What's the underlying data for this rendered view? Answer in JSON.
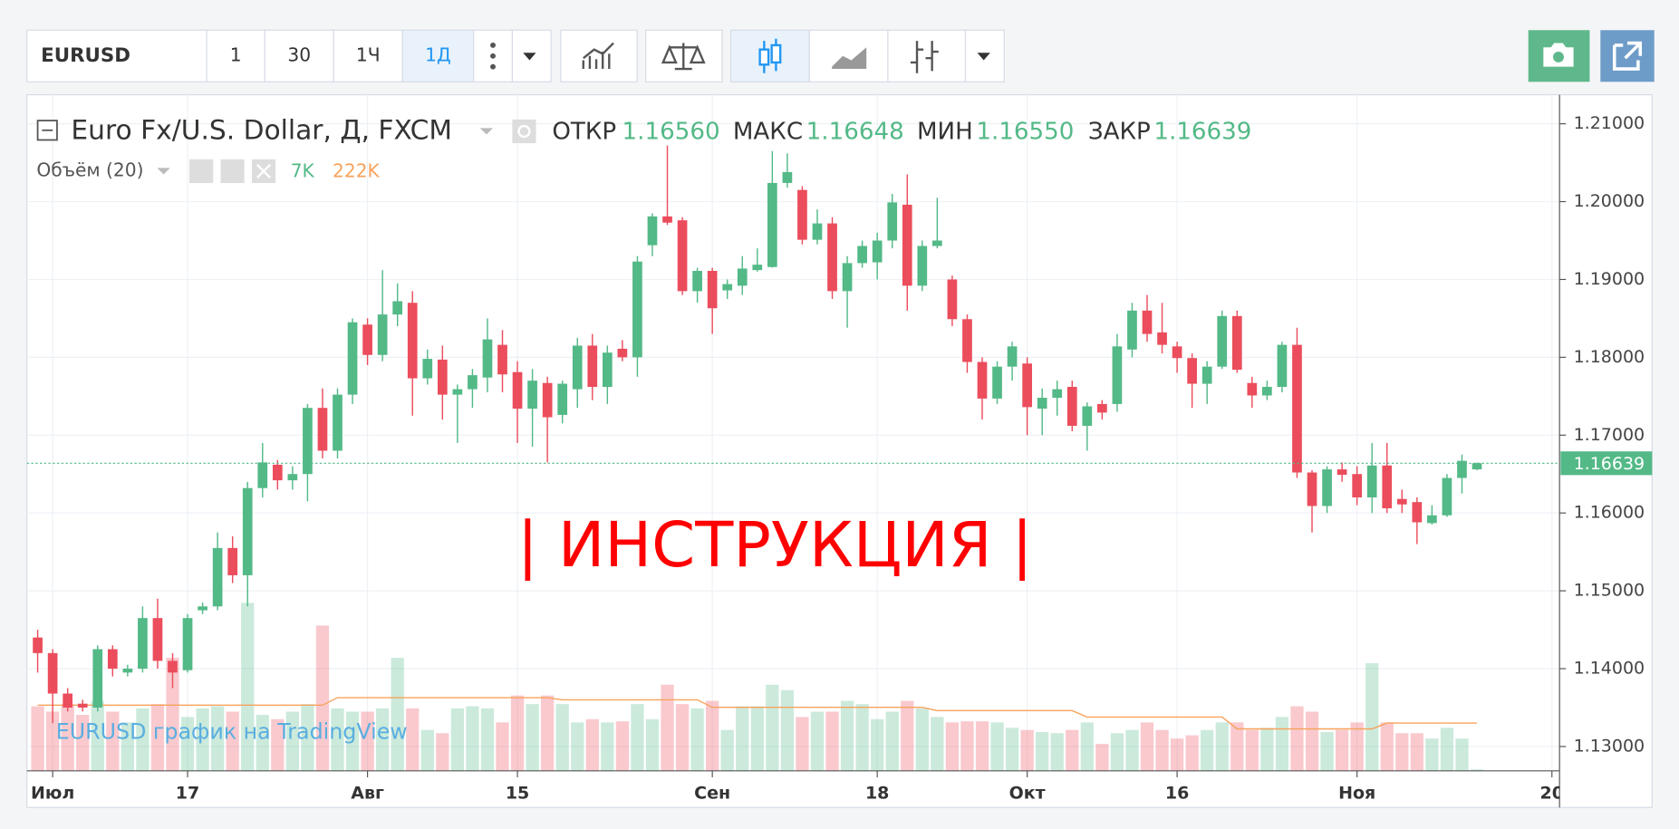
{
  "toolbar": {
    "symbol": "EURUSD",
    "intervals": [
      "1",
      "30",
      "1Ч",
      "1Д"
    ]
  },
  "legend": {
    "title": "Euro Fx/U.S. Dollar, Д, FXCM",
    "open_label": "ОТКР",
    "high_label": "МАКС",
    "low_label": "МИН",
    "close_label": "ЗАКР",
    "volume_title": "Объём (20)"
  },
  "watermark": "EURUSD график на TradingView",
  "overlay_text": "| ИНСТРУКЦИЯ |",
  "chart_data": {
    "type": "candlestick",
    "up_color": "#53b987",
    "down_color": "#eb4d5c",
    "volume_ma_color": "#f7a35c",
    "ohlc_labels": [
      "1.16560",
      "1.16648",
      "1.16550",
      "1.16639"
    ],
    "volume_label": {
      "value": 7000,
      "label": "7K"
    },
    "volume_ma_label": {
      "value": 222000,
      "label": "222K"
    },
    "ylim": [
      1.12687,
      1.21373
    ],
    "vlim": [
      0,
      3140000
    ],
    "yticks": [
      {
        "value": 1.13,
        "label": "1.13000"
      },
      {
        "value": 1.14,
        "label": "1.14000"
      },
      {
        "value": 1.15,
        "label": "1.15000"
      },
      {
        "value": 1.16,
        "label": "1.16000"
      },
      {
        "value": 1.17,
        "label": "1.17000"
      },
      {
        "value": 1.18,
        "label": "1.18000"
      },
      {
        "value": 1.19,
        "label": "1.19000"
      },
      {
        "value": 1.2,
        "label": "1.20000"
      },
      {
        "value": 1.21,
        "label": "1.21000"
      }
    ],
    "xticks": [
      {
        "value": 1,
        "label": "Июл"
      },
      {
        "value": 10,
        "label": "17"
      },
      {
        "value": 22,
        "label": "Авг"
      },
      {
        "value": 32,
        "label": "15"
      },
      {
        "value": 45,
        "label": "Сен"
      },
      {
        "value": 56,
        "label": "18"
      },
      {
        "value": 66,
        "label": "Окт"
      },
      {
        "value": 76,
        "label": "16"
      },
      {
        "value": 88,
        "label": "Ноя"
      },
      {
        "value": 101,
        "label": "20"
      }
    ],
    "grid": true,
    "open": [
      1.144,
      1.142,
      1.1368,
      1.1355,
      1.135,
      1.1425,
      1.1395,
      1.14,
      1.1465,
      1.141,
      1.1398,
      1.1475,
      1.148,
      1.1555,
      1.152,
      1.1632,
      1.1662,
      1.1642,
      1.165,
      1.1735,
      1.168,
      1.1752,
      1.1842,
      1.1803,
      1.1855,
      1.187,
      1.1773,
      1.1797,
      1.1752,
      1.1759,
      1.1774,
      1.1816,
      1.1781,
      1.1734,
      1.1767,
      1.1726,
      1.1759,
      1.1815,
      1.1762,
      1.1811,
      1.18,
      1.1944,
      1.1981,
      1.1976,
      1.1885,
      1.1911,
      1.1886,
      1.1892,
      1.1912,
      1.1916,
      1.2024,
      1.2015,
      1.1951,
      1.1972,
      1.1885,
      1.1921,
      1.1922,
      1.195,
      1.1996,
      1.1892,
      1.1943,
      1.19,
      1.1849,
      1.1794,
      1.1747,
      1.1788,
      1.1792,
      1.1734,
      1.1748,
      1.1762,
      1.1712,
      1.174,
      1.174,
      1.181,
      1.186,
      1.1832,
      1.1814,
      1.1799,
      1.1766,
      1.1788,
      1.1853,
      1.1767,
      1.1751,
      1.1762,
      1.1816,
      1.1652,
      1.1609,
      1.1656,
      1.165,
      1.162,
      1.1661,
      1.1618,
      1.1614,
      1.1587,
      1.1597,
      1.1645,
      1.1656
    ],
    "high": [
      1.145,
      1.1425,
      1.1375,
      1.136,
      1.143,
      1.143,
      1.1405,
      1.148,
      1.149,
      1.142,
      1.147,
      1.1485,
      1.1575,
      1.157,
      1.164,
      1.169,
      1.1668,
      1.166,
      1.174,
      1.176,
      1.176,
      1.185,
      1.185,
      1.1912,
      1.1895,
      1.1885,
      1.181,
      1.1815,
      1.1765,
      1.1785,
      1.185,
      1.1835,
      1.1795,
      1.1785,
      1.1775,
      1.177,
      1.1825,
      1.183,
      1.1815,
      1.1822,
      1.193,
      1.1985,
      1.2072,
      1.198,
      1.1915,
      1.1915,
      1.19,
      1.193,
      1.194,
      1.2065,
      1.2062,
      1.202,
      1.199,
      1.198,
      1.193,
      1.195,
      1.196,
      1.201,
      1.2035,
      1.195,
      1.2005,
      1.1905,
      1.1855,
      1.18,
      1.1795,
      1.182,
      1.18,
      1.176,
      1.177,
      1.177,
      1.1742,
      1.1745,
      1.183,
      1.187,
      1.188,
      1.187,
      1.182,
      1.1805,
      1.1795,
      1.186,
      1.186,
      1.1775,
      1.177,
      1.182,
      1.1838,
      1.1655,
      1.166,
      1.1665,
      1.166,
      1.169,
      1.169,
      1.163,
      1.162,
      1.161,
      1.165,
      1.1675,
      1.16648
    ],
    "low": [
      1.1395,
      1.133,
      1.1345,
      1.1345,
      1.1345,
      1.139,
      1.139,
      1.1395,
      1.14,
      1.1375,
      1.1395,
      1.147,
      1.1475,
      1.151,
      1.148,
      1.162,
      1.163,
      1.163,
      1.1615,
      1.167,
      1.167,
      1.174,
      1.179,
      1.1795,
      1.184,
      1.1725,
      1.1765,
      1.172,
      1.169,
      1.1735,
      1.1755,
      1.1755,
      1.169,
      1.1685,
      1.1665,
      1.1715,
      1.1735,
      1.1745,
      1.174,
      1.1795,
      1.1775,
      1.193,
      1.197,
      1.188,
      1.187,
      1.183,
      1.1875,
      1.188,
      1.191,
      1.1915,
      1.2018,
      1.1945,
      1.1945,
      1.1875,
      1.1838,
      1.1915,
      1.19,
      1.194,
      1.186,
      1.1885,
      1.194,
      1.184,
      1.178,
      1.172,
      1.174,
      1.177,
      1.17,
      1.17,
      1.1725,
      1.1705,
      1.168,
      1.172,
      1.173,
      1.18,
      1.182,
      1.1805,
      1.178,
      1.1735,
      1.174,
      1.1785,
      1.178,
      1.1735,
      1.1745,
      1.1755,
      1.1645,
      1.1575,
      1.16,
      1.164,
      1.161,
      1.16,
      1.16,
      1.16,
      1.156,
      1.1585,
      1.1595,
      1.1625,
      1.1655
    ],
    "close": [
      1.142,
      1.1368,
      1.135,
      1.135,
      1.1425,
      1.14,
      1.14,
      1.1465,
      1.141,
      1.1395,
      1.1465,
      1.148,
      1.1555,
      1.152,
      1.1632,
      1.1665,
      1.1642,
      1.165,
      1.1735,
      1.168,
      1.1752,
      1.1845,
      1.1803,
      1.1855,
      1.1872,
      1.1773,
      1.1798,
      1.1752,
      1.1759,
      1.1777,
      1.1823,
      1.1778,
      1.1734,
      1.177,
      1.1723,
      1.1766,
      1.1815,
      1.1762,
      1.1806,
      1.18,
      1.1923,
      1.1981,
      1.1973,
      1.1885,
      1.1911,
      1.1863,
      1.1894,
      1.1914,
      1.1919,
      1.2024,
      1.2038,
      1.1951,
      1.1972,
      1.1885,
      1.1921,
      1.1943,
      1.195,
      1.1999,
      1.1892,
      1.1943,
      1.195,
      1.1849,
      1.1794,
      1.1747,
      1.1788,
      1.1814,
      1.1736,
      1.1748,
      1.1759,
      1.1712,
      1.1737,
      1.1729,
      1.1814,
      1.186,
      1.183,
      1.1816,
      1.1799,
      1.1766,
      1.1788,
      1.1853,
      1.1784,
      1.1751,
      1.1762,
      1.1816,
      1.1652,
      1.1609,
      1.1656,
      1.1649,
      1.162,
      1.1661,
      1.1606,
      1.1611,
      1.1588,
      1.1597,
      1.1645,
      1.1667,
      1.16639
    ],
    "volume": [
      300000,
      275000,
      310000,
      260000,
      325000,
      275000,
      225000,
      290000,
      310000,
      525000,
      250000,
      290000,
      300000,
      275000,
      780000,
      260000,
      240000,
      275000,
      310000,
      675000,
      290000,
      275000,
      275000,
      290000,
      525000,
      290000,
      190000,
      175000,
      290000,
      300000,
      290000,
      225000,
      350000,
      310000,
      350000,
      310000,
      225000,
      240000,
      225000,
      230000,
      310000,
      240000,
      400000,
      310000,
      290000,
      325000,
      190000,
      300000,
      300000,
      400000,
      375000,
      250000,
      275000,
      275000,
      325000,
      310000,
      240000,
      275000,
      325000,
      290000,
      250000,
      225000,
      230000,
      230000,
      225000,
      200000,
      190000,
      180000,
      175000,
      190000,
      225000,
      125000,
      175000,
      190000,
      225000,
      190000,
      150000,
      165000,
      190000,
      225000,
      225000,
      190000,
      200000,
      250000,
      300000,
      275000,
      180000,
      190000,
      225000,
      500000,
      225000,
      175000,
      175000,
      150000,
      200000,
      150000,
      7000
    ],
    "volume_ma": [
      305000,
      305000,
      305000,
      305000,
      305000,
      305000,
      305000,
      305000,
      305000,
      305000,
      305000,
      305000,
      305000,
      305000,
      305000,
      305000,
      305000,
      305000,
      305000,
      305000,
      340000,
      340000,
      340000,
      340000,
      340000,
      340000,
      340000,
      340000,
      340000,
      340000,
      340000,
      340000,
      340000,
      340000,
      340000,
      330000,
      330000,
      330000,
      330000,
      330000,
      330000,
      330000,
      330000,
      330000,
      330000,
      295000,
      295000,
      295000,
      295000,
      295000,
      295000,
      295000,
      295000,
      295000,
      295000,
      295000,
      295000,
      295000,
      295000,
      295000,
      280000,
      280000,
      280000,
      280000,
      280000,
      280000,
      280000,
      280000,
      280000,
      280000,
      250000,
      250000,
      250000,
      250000,
      250000,
      250000,
      250000,
      250000,
      250000,
      250000,
      195000,
      195000,
      195000,
      195000,
      195000,
      195000,
      195000,
      195000,
      195000,
      195000,
      222000,
      222000,
      222000,
      222000,
      222000,
      222000,
      222000
    ]
  }
}
